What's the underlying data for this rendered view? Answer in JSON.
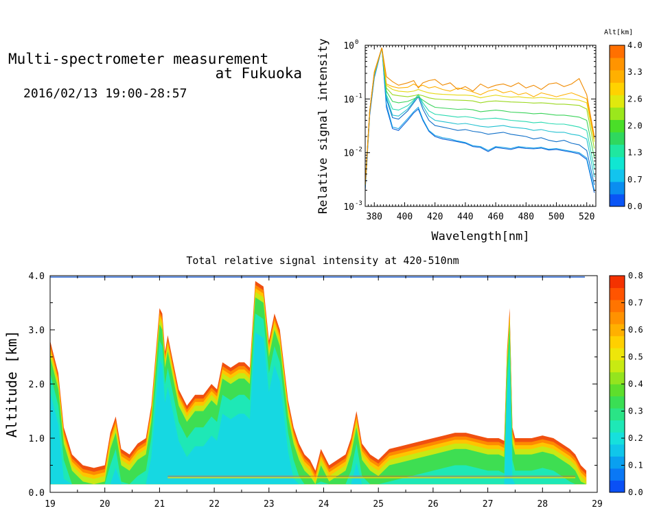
{
  "header": {
    "title_line1": "Multi-spectrometer measurement",
    "title_line2": "at Fukuoka",
    "date_range": "2016/02/13 19:00-28:57"
  },
  "chart_data": [
    {
      "type": "line",
      "title": "",
      "xlabel": "Wavelength[nm]",
      "ylabel": "Relative signal intensity",
      "xlim": [
        374,
        526
      ],
      "ylim": [
        0.001,
        1
      ],
      "yscale": "log",
      "x_ticks": [
        380,
        400,
        420,
        440,
        460,
        480,
        500,
        520
      ],
      "y_ticks": [
        {
          "value": 0.001,
          "base": "10",
          "exp": "-3"
        },
        {
          "value": 0.01,
          "base": "10",
          "exp": "-2"
        },
        {
          "value": 0.1,
          "base": "10",
          "exp": "-1"
        },
        {
          "value": 1,
          "base": "10",
          "exp": "0"
        }
      ],
      "legend": "colorbar-right",
      "colorbar": {
        "label": "Alt[km]",
        "ticks": [
          "0.0",
          "0.7",
          "1.3",
          "2.0",
          "2.6",
          "3.3",
          "4.0"
        ],
        "colors": [
          "#0a55f5",
          "#0a8ef0",
          "#12c4ee",
          "#10e6d2",
          "#1fe7a0",
          "#2fd85e",
          "#4ade28",
          "#9be71c",
          "#e0e90e",
          "#ffd200",
          "#ffb000",
          "#ff9400",
          "#ff7000"
        ]
      },
      "x": [
        374,
        377,
        380,
        385,
        388,
        392,
        396,
        402,
        406,
        409,
        412,
        416,
        420,
        425,
        430,
        435,
        440,
        445,
        450,
        455,
        460,
        465,
        470,
        475,
        480,
        485,
        490,
        495,
        500,
        505,
        510,
        515,
        520,
        525
      ],
      "series": [
        {
          "color": "#0b5fd6",
          "values": [
            0.002,
            0.05,
            0.25,
            0.9,
            0.07,
            0.028,
            0.026,
            0.04,
            0.055,
            0.065,
            0.04,
            0.025,
            0.02,
            0.018,
            0.017,
            0.016,
            0.015,
            0.013,
            0.0125,
            0.0105,
            0.0125,
            0.012,
            0.0115,
            0.0125,
            0.012,
            0.0118,
            0.0122,
            0.0112,
            0.0115,
            0.0108,
            0.0102,
            0.0095,
            0.0075,
            0.0018
          ]
        },
        {
          "color": "#17a3e8",
          "values": [
            0.0022,
            0.055,
            0.26,
            0.9,
            0.08,
            0.03,
            0.028,
            0.043,
            0.058,
            0.07,
            0.042,
            0.026,
            0.021,
            0.019,
            0.018,
            0.0165,
            0.0155,
            0.0135,
            0.013,
            0.011,
            0.013,
            0.0125,
            0.012,
            0.013,
            0.0125,
            0.0122,
            0.0126,
            0.0116,
            0.012,
            0.0112,
            0.0106,
            0.01,
            0.008,
            0.002
          ]
        },
        {
          "color": "#0e6ec8",
          "values": [
            0.0025,
            0.06,
            0.28,
            0.9,
            0.1,
            0.045,
            0.042,
            0.06,
            0.085,
            0.11,
            0.065,
            0.04,
            0.032,
            0.03,
            0.028,
            0.026,
            0.027,
            0.025,
            0.024,
            0.022,
            0.023,
            0.024,
            0.022,
            0.021,
            0.02,
            0.018,
            0.019,
            0.017,
            0.016,
            0.017,
            0.015,
            0.014,
            0.011,
            0.0025
          ]
        },
        {
          "color": "#20c0d0",
          "values": [
            0.0025,
            0.06,
            0.28,
            0.9,
            0.11,
            0.05,
            0.048,
            0.065,
            0.09,
            0.12,
            0.075,
            0.048,
            0.04,
            0.038,
            0.036,
            0.034,
            0.035,
            0.033,
            0.031,
            0.03,
            0.031,
            0.032,
            0.03,
            0.029,
            0.028,
            0.026,
            0.027,
            0.025,
            0.024,
            0.024,
            0.022,
            0.021,
            0.018,
            0.0035
          ]
        },
        {
          "color": "#26d9b0",
          "values": [
            0.0025,
            0.06,
            0.29,
            0.9,
            0.12,
            0.065,
            0.062,
            0.075,
            0.095,
            0.12,
            0.085,
            0.06,
            0.052,
            0.05,
            0.048,
            0.046,
            0.047,
            0.045,
            0.042,
            0.043,
            0.044,
            0.042,
            0.04,
            0.039,
            0.038,
            0.036,
            0.037,
            0.035,
            0.034,
            0.034,
            0.032,
            0.03,
            0.026,
            0.005
          ]
        },
        {
          "color": "#3ad35a",
          "values": [
            0.0025,
            0.06,
            0.3,
            0.9,
            0.14,
            0.09,
            0.085,
            0.09,
            0.1,
            0.11,
            0.095,
            0.08,
            0.07,
            0.068,
            0.066,
            0.064,
            0.065,
            0.063,
            0.058,
            0.06,
            0.062,
            0.06,
            0.057,
            0.056,
            0.055,
            0.053,
            0.054,
            0.052,
            0.05,
            0.05,
            0.048,
            0.046,
            0.04,
            0.008
          ]
        },
        {
          "color": "#9ad81d",
          "values": [
            0.0025,
            0.06,
            0.3,
            0.9,
            0.16,
            0.12,
            0.115,
            0.11,
            0.115,
            0.12,
            0.115,
            0.105,
            0.1,
            0.098,
            0.096,
            0.095,
            0.094,
            0.092,
            0.085,
            0.09,
            0.092,
            0.09,
            0.088,
            0.087,
            0.086,
            0.084,
            0.085,
            0.083,
            0.08,
            0.08,
            0.078,
            0.076,
            0.065,
            0.012
          ]
        },
        {
          "color": "#e5d811",
          "values": [
            0.0025,
            0.06,
            0.3,
            0.9,
            0.18,
            0.15,
            0.14,
            0.135,
            0.14,
            0.15,
            0.14,
            0.13,
            0.125,
            0.122,
            0.12,
            0.118,
            0.118,
            0.115,
            0.105,
            0.112,
            0.118,
            0.112,
            0.108,
            0.11,
            0.106,
            0.104,
            0.107,
            0.103,
            0.1,
            0.101,
            0.098,
            0.095,
            0.085,
            0.016
          ]
        },
        {
          "color": "#ffb000",
          "values": [
            0.0025,
            0.06,
            0.31,
            0.9,
            0.19,
            0.17,
            0.16,
            0.165,
            0.19,
            0.17,
            0.18,
            0.16,
            0.17,
            0.15,
            0.14,
            0.16,
            0.15,
            0.135,
            0.12,
            0.14,
            0.15,
            0.13,
            0.14,
            0.12,
            0.13,
            0.11,
            0.13,
            0.12,
            0.11,
            0.12,
            0.13,
            0.115,
            0.1,
            0.018
          ]
        },
        {
          "color": "#f08a00",
          "values": [
            0.0025,
            0.06,
            0.32,
            0.9,
            0.26,
            0.21,
            0.18,
            0.2,
            0.22,
            0.16,
            0.2,
            0.22,
            0.23,
            0.18,
            0.2,
            0.15,
            0.17,
            0.14,
            0.19,
            0.16,
            0.18,
            0.19,
            0.17,
            0.2,
            0.16,
            0.18,
            0.15,
            0.19,
            0.2,
            0.17,
            0.19,
            0.24,
            0.12,
            0.02
          ]
        }
      ]
    },
    {
      "type": "heatmap",
      "title": "Total relative signal intensity at 420-510nm",
      "xlabel": "",
      "ylabel": "Altitude [km]",
      "xlim": [
        19,
        29
      ],
      "ylim": [
        0,
        4
      ],
      "x_ticks": [
        "19",
        "20",
        "21",
        "22",
        "23",
        "24",
        "25",
        "26",
        "27",
        "28",
        "29"
      ],
      "y_ticks": [
        "0.0",
        "1.0",
        "2.0",
        "3.0",
        "4.0"
      ],
      "colorbar": {
        "ticks": [
          "0.0",
          "0.1",
          "0.2",
          "0.3",
          "0.4",
          "0.5",
          "0.6",
          "0.7",
          "0.8"
        ],
        "vlim": [
          0,
          0.8
        ],
        "colors": [
          "#0a50f5",
          "#0a78f5",
          "#0aa0f0",
          "#10c6ea",
          "#16e0dc",
          "#1ee8b6",
          "#2ae486",
          "#3ade54",
          "#5ede2c",
          "#94e41e",
          "#c8ea12",
          "#eee60a",
          "#ffd000",
          "#ffb000",
          "#ff9200",
          "#ff7400",
          "#ff5400",
          "#f43200"
        ]
      },
      "cloud_top_km": {
        "x": [
          19.0,
          19.05,
          19.15,
          19.25,
          19.4,
          19.6,
          19.8,
          20.0,
          20.1,
          20.2,
          20.3,
          20.45,
          20.6,
          20.75,
          20.85,
          20.95,
          21.0,
          21.05,
          21.1,
          21.15,
          21.25,
          21.35,
          21.5,
          21.65,
          21.8,
          21.95,
          22.05,
          22.15,
          22.3,
          22.45,
          22.55,
          22.65,
          22.75,
          22.9,
          23.0,
          23.1,
          23.2,
          23.35,
          23.45,
          23.55,
          23.65,
          23.75,
          23.85,
          23.95,
          24.1,
          24.25,
          24.4,
          24.5,
          24.6,
          24.7,
          24.85,
          25.0,
          25.2,
          25.4,
          25.6,
          25.8,
          26.0,
          26.2,
          26.4,
          26.6,
          26.8,
          27.0,
          27.2,
          27.3,
          27.35,
          27.4,
          27.45,
          27.5,
          27.6,
          27.8,
          28.0,
          28.2,
          28.35,
          28.5,
          28.6,
          28.7,
          28.8
        ],
        "top": [
          2.8,
          2.6,
          2.2,
          1.2,
          0.7,
          0.5,
          0.45,
          0.5,
          1.1,
          1.4,
          0.8,
          0.7,
          0.9,
          1.0,
          1.6,
          2.8,
          3.4,
          3.3,
          2.6,
          2.9,
          2.4,
          1.9,
          1.6,
          1.8,
          1.8,
          2.0,
          1.9,
          2.4,
          2.3,
          2.4,
          2.4,
          2.3,
          3.9,
          3.8,
          2.8,
          3.3,
          3.0,
          1.7,
          1.2,
          0.9,
          0.7,
          0.6,
          0.4,
          0.8,
          0.5,
          0.6,
          0.7,
          1.0,
          1.5,
          0.9,
          0.7,
          0.6,
          0.8,
          0.85,
          0.9,
          0.95,
          1.0,
          1.05,
          1.1,
          1.1,
          1.05,
          1.0,
          1.0,
          0.95,
          2.6,
          3.4,
          1.2,
          1.0,
          1.0,
          1.0,
          1.05,
          1.0,
          0.9,
          0.8,
          0.7,
          0.5,
          0.4
        ],
        "base": 0.15
      }
    }
  ]
}
